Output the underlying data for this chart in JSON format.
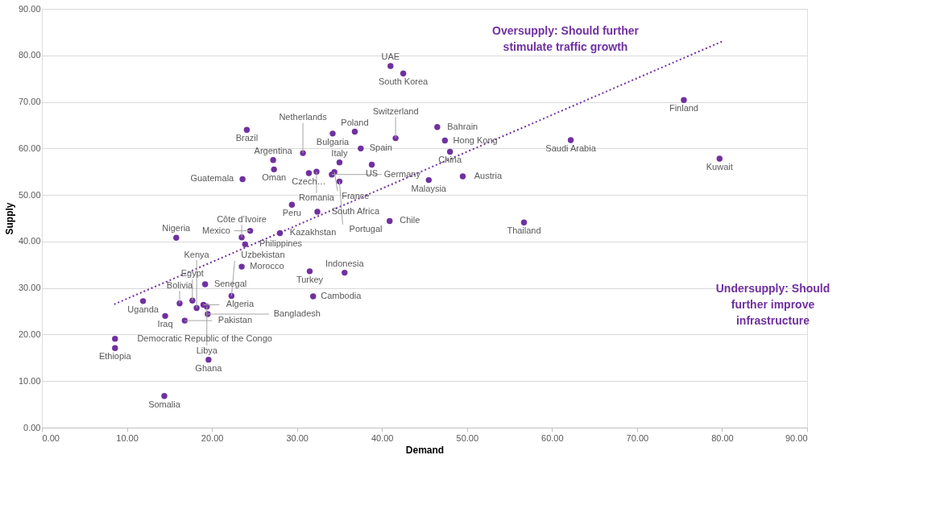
{
  "chart_data": {
    "type": "scatter",
    "xlabel": "Demand",
    "ylabel": "Supply",
    "xlim": [
      0,
      90
    ],
    "ylim": [
      0,
      90
    ],
    "xticks": [
      {
        "value": 0,
        "label": "0.00"
      },
      {
        "value": 10,
        "label": "10.00"
      },
      {
        "value": 20,
        "label": "20.00"
      },
      {
        "value": 30,
        "label": "30.00"
      },
      {
        "value": 40,
        "label": "40.00"
      },
      {
        "value": 50,
        "label": "50.00"
      },
      {
        "value": 60,
        "label": "60.00"
      },
      {
        "value": 70,
        "label": "70.00"
      },
      {
        "value": 80,
        "label": "80.00"
      },
      {
        "value": 90,
        "label": "90.00"
      }
    ],
    "yticks": [
      {
        "value": 0,
        "label": "0.00"
      },
      {
        "value": 10,
        "label": "10.00"
      },
      {
        "value": 20,
        "label": "20.00"
      },
      {
        "value": 30,
        "label": "30.00"
      },
      {
        "value": 40,
        "label": "40.00"
      },
      {
        "value": 50,
        "label": "50.00"
      },
      {
        "value": 60,
        "label": "60.00"
      },
      {
        "value": 70,
        "label": "70.00"
      },
      {
        "value": 80,
        "label": "80.00"
      },
      {
        "value": 90,
        "label": "90.00"
      }
    ],
    "grid": "y",
    "marker": "circle",
    "series": [
      {
        "type": "scatter",
        "color": "#7030a0",
        "x": [
          8.6,
          8.6,
          11.9,
          16.2,
          14.5,
          16.8,
          17.7,
          19.2,
          19.0,
          19.4,
          18.2,
          19.5,
          22.3,
          19.6,
          14.4,
          15.8,
          23.5,
          24.5,
          23.9,
          23.5,
          28.0,
          29.4,
          32.4,
          24.1,
          27.2,
          27.3,
          23.6,
          30.7,
          32.3,
          31.4,
          34.2,
          36.8,
          37.5,
          35.0,
          38.8,
          34.1,
          34.4,
          35.0,
          41.0,
          42.5,
          41.6,
          46.5,
          47.4,
          48.0,
          45.5,
          49.5,
          62.2,
          75.5,
          79.7,
          56.7,
          40.9,
          31.5,
          35.6,
          31.9
        ],
        "values": [
          19.1,
          17.1,
          27.2,
          26.7,
          24.0,
          23.0,
          27.3,
          30.8,
          26.4,
          26.0,
          25.7,
          24.4,
          28.3,
          14.6,
          6.8,
          40.8,
          40.9,
          42.3,
          39.4,
          34.6,
          41.8,
          47.9,
          46.4,
          64.0,
          57.5,
          55.5,
          53.4,
          59.0,
          55.0,
          54.7,
          63.2,
          63.6,
          60.0,
          57.0,
          56.5,
          54.4,
          54.9,
          52.9,
          77.7,
          76.1,
          62.2,
          64.6,
          61.7,
          59.3,
          53.2,
          54.0,
          61.8,
          70.4,
          57.8,
          44.1,
          44.4,
          33.6,
          33.3,
          28.2
        ]
      },
      {
        "type": "line",
        "color": "#7030a0",
        "line_style": "dotted",
        "marker": "none",
        "x": [
          8.5,
          80
        ],
        "values": [
          26.5,
          83
        ]
      }
    ],
    "annotations": [
      {
        "text": "Democratic Republic of the Congo",
        "x": 8.6,
        "y": 19.1
      },
      {
        "text": "Ethiopia",
        "x": 8.6,
        "y": 17.1
      },
      {
        "text": "Uganda",
        "x": 11.9,
        "y": 27.2
      },
      {
        "text": "Bolivia",
        "x": 16.2,
        "y": 26.7
      },
      {
        "text": "Iraq",
        "x": 14.5,
        "y": 24.0
      },
      {
        "text": "Pakistan",
        "x": 16.8,
        "y": 23.0
      },
      {
        "text": "Egypt",
        "x": 17.7,
        "y": 27.3
      },
      {
        "text": "Senegal",
        "x": 19.2,
        "y": 30.8
      },
      {
        "text": "Algeria",
        "x": 19.0,
        "y": 26.4
      },
      {
        "text": "Libya",
        "x": 19.4,
        "y": 26.0
      },
      {
        "text": "Kenya",
        "x": 18.2,
        "y": 25.7
      },
      {
        "text": "Bangladesh",
        "x": 19.5,
        "y": 24.4
      },
      {
        "text": "Uzbekistan",
        "x": 22.3,
        "y": 28.3
      },
      {
        "text": "Ghana",
        "x": 19.6,
        "y": 14.6
      },
      {
        "text": "Somalia",
        "x": 14.4,
        "y": 6.8
      },
      {
        "text": "Nigeria",
        "x": 15.8,
        "y": 40.8
      },
      {
        "text": "Côte d’Ivoire",
        "x": 23.5,
        "y": 40.9
      },
      {
        "text": "Mexico",
        "x": 24.5,
        "y": 42.3
      },
      {
        "text": "Philippines",
        "x": 23.9,
        "y": 39.4
      },
      {
        "text": "Morocco",
        "x": 23.5,
        "y": 34.6
      },
      {
        "text": "Kazakhstan",
        "x": 28.0,
        "y": 41.8
      },
      {
        "text": "Peru",
        "x": 29.4,
        "y": 47.9
      },
      {
        "text": "South Africa",
        "x": 32.4,
        "y": 46.4
      },
      {
        "text": "Brazil",
        "x": 24.1,
        "y": 64.0
      },
      {
        "text": "Argentina",
        "x": 27.2,
        "y": 57.5
      },
      {
        "text": "Oman",
        "x": 27.3,
        "y": 55.5
      },
      {
        "text": "Guatemala",
        "x": 23.6,
        "y": 53.4
      },
      {
        "text": "Netherlands",
        "x": 30.7,
        "y": 59.0
      },
      {
        "text": "Romania",
        "x": 32.3,
        "y": 55.0
      },
      {
        "text": "Czech…",
        "x": 31.4,
        "y": 54.7
      },
      {
        "text": "Bulgaria",
        "x": 34.2,
        "y": 63.2
      },
      {
        "text": "Poland",
        "x": 36.8,
        "y": 63.6
      },
      {
        "text": "Spain",
        "x": 37.5,
        "y": 60.0
      },
      {
        "text": "Italy",
        "x": 35.0,
        "y": 57.0
      },
      {
        "text": "US",
        "x": 38.8,
        "y": 56.5
      },
      {
        "text": "Germany",
        "x": 34.1,
        "y": 54.4
      },
      {
        "text": "France",
        "x": 34.4,
        "y": 54.9
      },
      {
        "text": "Portugal",
        "x": 35.0,
        "y": 52.9
      },
      {
        "text": "UAE",
        "x": 41.0,
        "y": 77.7
      },
      {
        "text": "South Korea",
        "x": 42.5,
        "y": 76.1
      },
      {
        "text": "Switzerland",
        "x": 41.6,
        "y": 62.2
      },
      {
        "text": "Bahrain",
        "x": 46.5,
        "y": 64.6
      },
      {
        "text": "Hong Kong",
        "x": 47.4,
        "y": 61.7
      },
      {
        "text": "China",
        "x": 48.0,
        "y": 59.3
      },
      {
        "text": "Malaysia",
        "x": 45.5,
        "y": 53.2
      },
      {
        "text": "Austria",
        "x": 49.5,
        "y": 54.0
      },
      {
        "text": "Saudi Arabia",
        "x": 62.2,
        "y": 61.8
      },
      {
        "text": "Finland",
        "x": 75.5,
        "y": 70.4
      },
      {
        "text": "Kuwait",
        "x": 79.7,
        "y": 57.8
      },
      {
        "text": "Thailand",
        "x": 56.7,
        "y": 44.1
      },
      {
        "text": "Chile",
        "x": 40.9,
        "y": 44.4
      },
      {
        "text": "Turkey",
        "x": 31.5,
        "y": 33.6
      },
      {
        "text": "Indonesia",
        "x": 35.6,
        "y": 33.3
      },
      {
        "text": "Cambodia",
        "x": 31.9,
        "y": 28.2
      },
      "Oversupply: Should further stimulate traffic growth",
      "Undersupply: Should further improve infrastructure"
    ]
  }
}
